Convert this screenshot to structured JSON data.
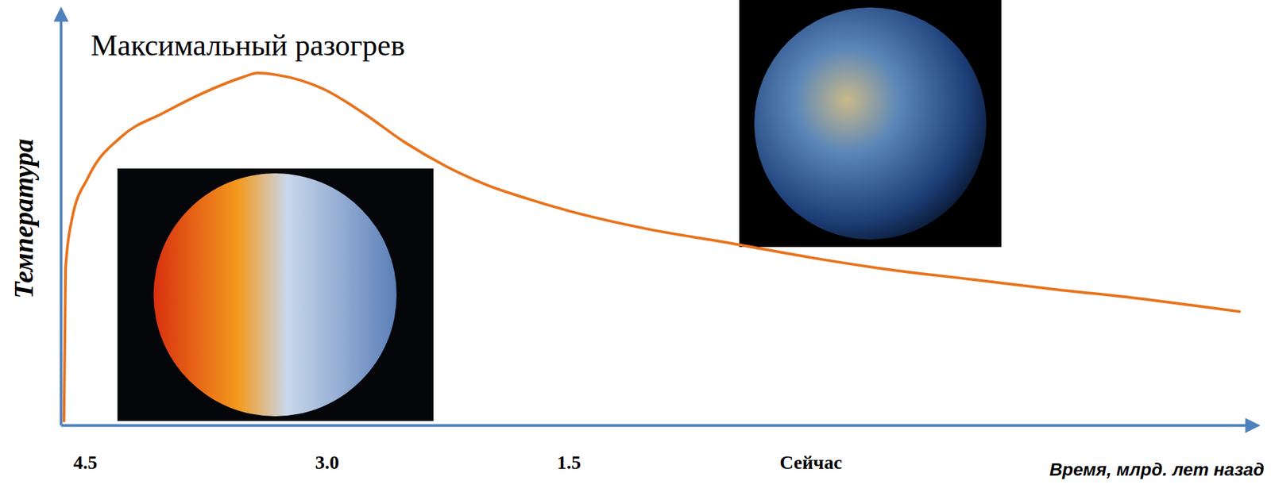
{
  "chart_data": {
    "type": "line",
    "title": "Максимальный разогрев",
    "x_label": "Время, млрд. лет назад",
    "y_label": "Температура",
    "x": [
      4.63,
      4.62,
      4.58,
      4.48,
      4.27,
      4.02,
      3.77,
      3.52,
      3.43,
      3.32,
      3.02,
      2.77,
      2.52,
      2.26,
      2.01,
      1.76,
      1.51,
      1.01,
      0.5,
      0,
      -0.5,
      -1.0,
      -1.51,
      -2.01,
      -2.66
    ],
    "values": [
      1,
      38,
      50,
      60,
      70,
      75.5,
      80.4,
      84.3,
      85.3,
      84.9,
      81.4,
      75.5,
      68.6,
      62.7,
      58.2,
      54.9,
      52,
      47.5,
      44.1,
      40.6,
      37.6,
      35.3,
      32.9,
      30.8,
      27.5
    ],
    "color": "#e8731c",
    "xlim": [
      4.65,
      -2.75
    ],
    "ylim": [
      0,
      100
    ],
    "xticks": [
      4.5,
      {
        "value": 3,
        "label": "3.0"
      },
      1.5,
      {
        "value": 0,
        "label": "Сейчас"
      }
    ],
    "tick_labels": "x",
    "grid": false
  }
}
